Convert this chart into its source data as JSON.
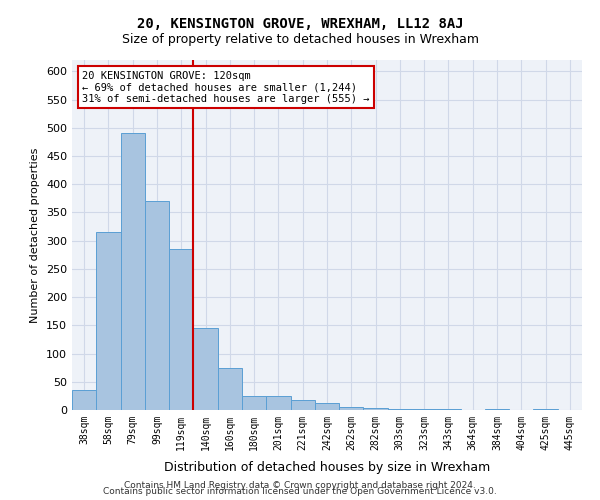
{
  "title": "20, KENSINGTON GROVE, WREXHAM, LL12 8AJ",
  "subtitle": "Size of property relative to detached houses in Wrexham",
  "xlabel": "Distribution of detached houses by size in Wrexham",
  "ylabel": "Number of detached properties",
  "bar_labels": [
    "38sqm",
    "58sqm",
    "79sqm",
    "99sqm",
    "119sqm",
    "140sqm",
    "160sqm",
    "180sqm",
    "201sqm",
    "221sqm",
    "242sqm",
    "262sqm",
    "282sqm",
    "303sqm",
    "323sqm",
    "343sqm",
    "364sqm",
    "384sqm",
    "404sqm",
    "425sqm",
    "445sqm"
  ],
  "bar_values": [
    35,
    315,
    490,
    370,
    285,
    145,
    75,
    25,
    25,
    18,
    12,
    5,
    3,
    2,
    2,
    2,
    0,
    2,
    0,
    2,
    0
  ],
  "bar_color": "#a8c4e0",
  "bar_edge_color": "#5a9fd4",
  "vline_x": 4,
  "vline_color": "#cc0000",
  "annotation_box_text": "20 KENSINGTON GROVE: 120sqm\n← 69% of detached houses are smaller (1,244)\n31% of semi-detached houses are larger (555) →",
  "annotation_box_color": "#cc0000",
  "grid_color": "#d0d8e8",
  "bg_color": "#eef2f8",
  "ylim": [
    0,
    620
  ],
  "yticks": [
    0,
    50,
    100,
    150,
    200,
    250,
    300,
    350,
    400,
    450,
    500,
    550,
    600
  ],
  "footer_line1": "Contains HM Land Registry data © Crown copyright and database right 2024.",
  "footer_line2": "Contains public sector information licensed under the Open Government Licence v3.0."
}
